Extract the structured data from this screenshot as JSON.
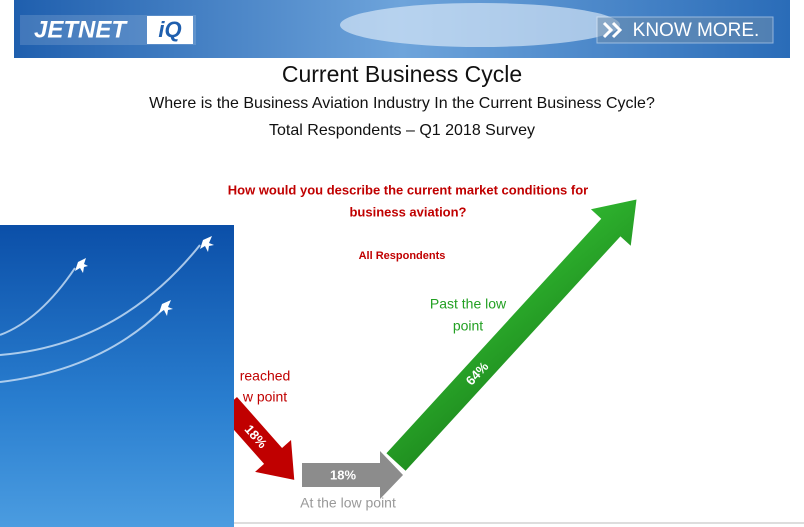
{
  "header": {
    "logo": "JETNET",
    "logo_badge": "iQ",
    "button": "KNOW MORE."
  },
  "title": "Current Business Cycle",
  "subtitle": [
    "Where is the Business Aviation Industry In the Current Business Cycle?",
    "Total Respondents – Q1 2018 Survey"
  ],
  "question": [
    "How would you describe the current market conditions for",
    "business aviation?"
  ],
  "group": "All Respondents",
  "stages": [
    {
      "label": [
        "reached",
        "w point"
      ],
      "value": "18%"
    },
    {
      "label": [
        "At the low point"
      ],
      "value": "18%"
    },
    {
      "label": [
        "Past the low",
        "point"
      ],
      "value": "64%"
    }
  ]
}
